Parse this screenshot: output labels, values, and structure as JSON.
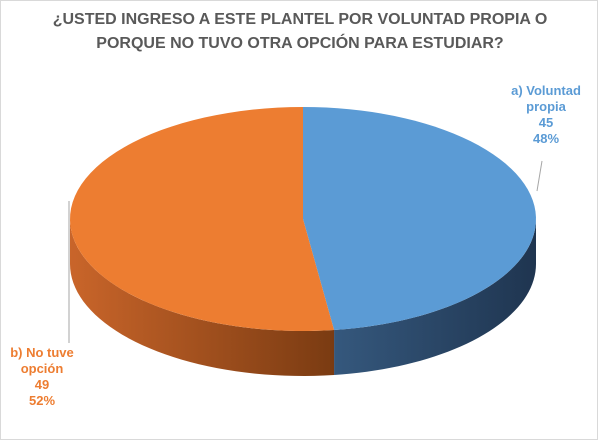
{
  "chart_data": {
    "type": "pie",
    "title": [
      "¿USTED INGRESO A ESTE PLANTEL POR VOLUNTAD PROPIA O",
      "PORQUE NO TUVO OTRA OPCIÓN PARA ESTUDIAR?"
    ],
    "categories": [
      "a) Voluntad propia",
      "b) No tuve opción"
    ],
    "values": [
      45,
      49
    ],
    "percent_labels": [
      "48%",
      "52%"
    ],
    "colors": [
      "#5b9bd5",
      "#ed7d31"
    ]
  }
}
